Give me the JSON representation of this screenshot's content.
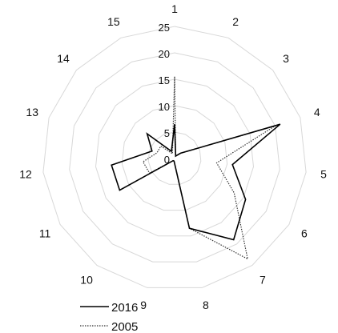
{
  "chart_data": {
    "type": "radar",
    "categories": [
      "1",
      "2",
      "3",
      "4",
      "5",
      "6",
      "7",
      "8",
      "9",
      "10",
      "11",
      "12",
      "13",
      "14",
      "15"
    ],
    "radial_ticks": [
      "0",
      "5",
      "10",
      "15",
      "20",
      "25"
    ],
    "rlim": [
      0,
      25
    ],
    "grid": true,
    "legend_position": "bottom-left",
    "series": [
      {
        "name": "2016",
        "values": [
          6.5,
          0.5,
          1.5,
          21,
          11,
          15.5,
          19,
          13.5,
          0.5,
          0.5,
          12,
          12,
          4.5,
          7,
          1.5
        ]
      },
      {
        "name": "2005",
        "values": [
          15.5,
          0.5,
          1.5,
          20,
          8,
          13,
          23.5,
          13.5,
          0.5,
          0.5,
          5.5,
          6,
          3.5,
          3.5,
          1
        ]
      }
    ]
  },
  "colors": {
    "grid": "#d8d8d8",
    "series_2016": "#000000",
    "series_2005": "#333333"
  }
}
